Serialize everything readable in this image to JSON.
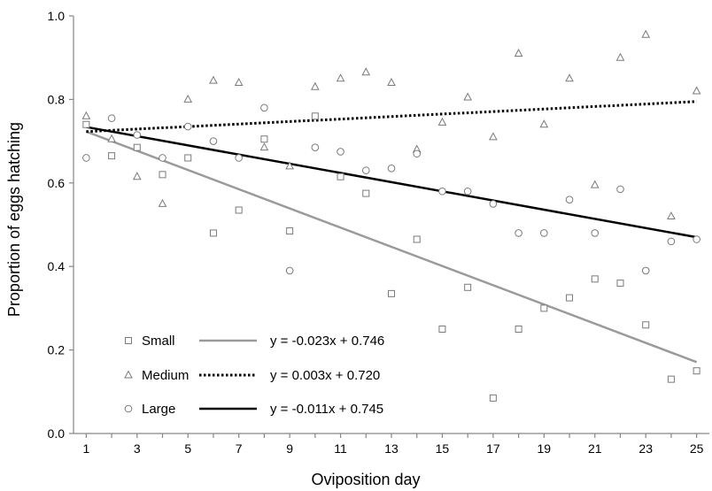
{
  "chart_data": {
    "type": "scatter",
    "xlabel": "Oviposition day",
    "ylabel": "Proportion of eggs hatching",
    "xlim": [
      0.5,
      25.5
    ],
    "ylim": [
      0.0,
      1.0
    ],
    "x_ticks": [
      1,
      3,
      5,
      7,
      9,
      11,
      13,
      15,
      17,
      19,
      21,
      23,
      25
    ],
    "x_tick_labels": [
      "1",
      "3",
      "5",
      "7",
      "9",
      "11",
      "13",
      "15",
      "17",
      "19",
      "21",
      "23",
      "25"
    ],
    "y_ticks": [
      0.0,
      0.2,
      0.4,
      0.6,
      0.8,
      1.0
    ],
    "y_tick_labels": [
      "0.0",
      "0.2",
      "0.4",
      "0.6",
      "0.8",
      "1.0"
    ],
    "grid": false,
    "legend_position": "bottom-left",
    "series": [
      {
        "name": "Small",
        "marker": "square",
        "points": [
          [
            1,
            0.74
          ],
          [
            2,
            0.665
          ],
          [
            3,
            0.685
          ],
          [
            4,
            0.62
          ],
          [
            5,
            0.66
          ],
          [
            6,
            0.48
          ],
          [
            7,
            0.535
          ],
          [
            8,
            0.705
          ],
          [
            9,
            0.485
          ],
          [
            10,
            0.76
          ],
          [
            11,
            0.615
          ],
          [
            12,
            0.575
          ],
          [
            13,
            0.335
          ],
          [
            14,
            0.465
          ],
          [
            15,
            0.25
          ],
          [
            16,
            0.35
          ],
          [
            17,
            0.085
          ],
          [
            18,
            0.25
          ],
          [
            19,
            0.3
          ],
          [
            20,
            0.325
          ],
          [
            21,
            0.37
          ],
          [
            22,
            0.36
          ],
          [
            23,
            0.26
          ],
          [
            24,
            0.13
          ],
          [
            25,
            0.15
          ]
        ],
        "trend": {
          "label": "y = -0.023x + 0.746",
          "slope": -0.023,
          "intercept": 0.746,
          "color": "#9a9a9a",
          "style": "solid"
        }
      },
      {
        "name": "Medium",
        "marker": "triangle",
        "points": [
          [
            1,
            0.76
          ],
          [
            2,
            0.705
          ],
          [
            3,
            0.615
          ],
          [
            4,
            0.55
          ],
          [
            5,
            0.8
          ],
          [
            6,
            0.845
          ],
          [
            7,
            0.84
          ],
          [
            8,
            0.685
          ],
          [
            9,
            0.64
          ],
          [
            10,
            0.83
          ],
          [
            11,
            0.85
          ],
          [
            12,
            0.865
          ],
          [
            13,
            0.84
          ],
          [
            14,
            0.68
          ],
          [
            15,
            0.745
          ],
          [
            16,
            0.805
          ],
          [
            17,
            0.71
          ],
          [
            18,
            0.91
          ],
          [
            19,
            0.74
          ],
          [
            20,
            0.85
          ],
          [
            21,
            0.595
          ],
          [
            22,
            0.9
          ],
          [
            23,
            0.955
          ],
          [
            24,
            0.52
          ],
          [
            25,
            0.82
          ]
        ],
        "trend": {
          "label": "y = 0.003x + 0.720",
          "slope": 0.003,
          "intercept": 0.72,
          "color": "#000000",
          "style": "dotted"
        }
      },
      {
        "name": "Large",
        "marker": "circle",
        "points": [
          [
            1,
            0.66
          ],
          [
            2,
            0.755
          ],
          [
            3,
            0.715
          ],
          [
            4,
            0.66
          ],
          [
            5,
            0.735
          ],
          [
            6,
            0.7
          ],
          [
            7,
            0.66
          ],
          [
            8,
            0.78
          ],
          [
            9,
            0.39
          ],
          [
            10,
            0.685
          ],
          [
            11,
            0.675
          ],
          [
            12,
            0.63
          ],
          [
            13,
            0.635
          ],
          [
            14,
            0.67
          ],
          [
            15,
            0.58
          ],
          [
            16,
            0.58
          ],
          [
            17,
            0.55
          ],
          [
            18,
            0.48
          ],
          [
            19,
            0.48
          ],
          [
            20,
            0.56
          ],
          [
            21,
            0.48
          ],
          [
            22,
            0.585
          ],
          [
            23,
            0.39
          ],
          [
            24,
            0.46
          ],
          [
            25,
            0.465
          ]
        ],
        "trend": {
          "label": "y = -0.011x + 0.745",
          "slope": -0.011,
          "intercept": 0.745,
          "color": "#000000",
          "style": "solid"
        }
      }
    ]
  }
}
